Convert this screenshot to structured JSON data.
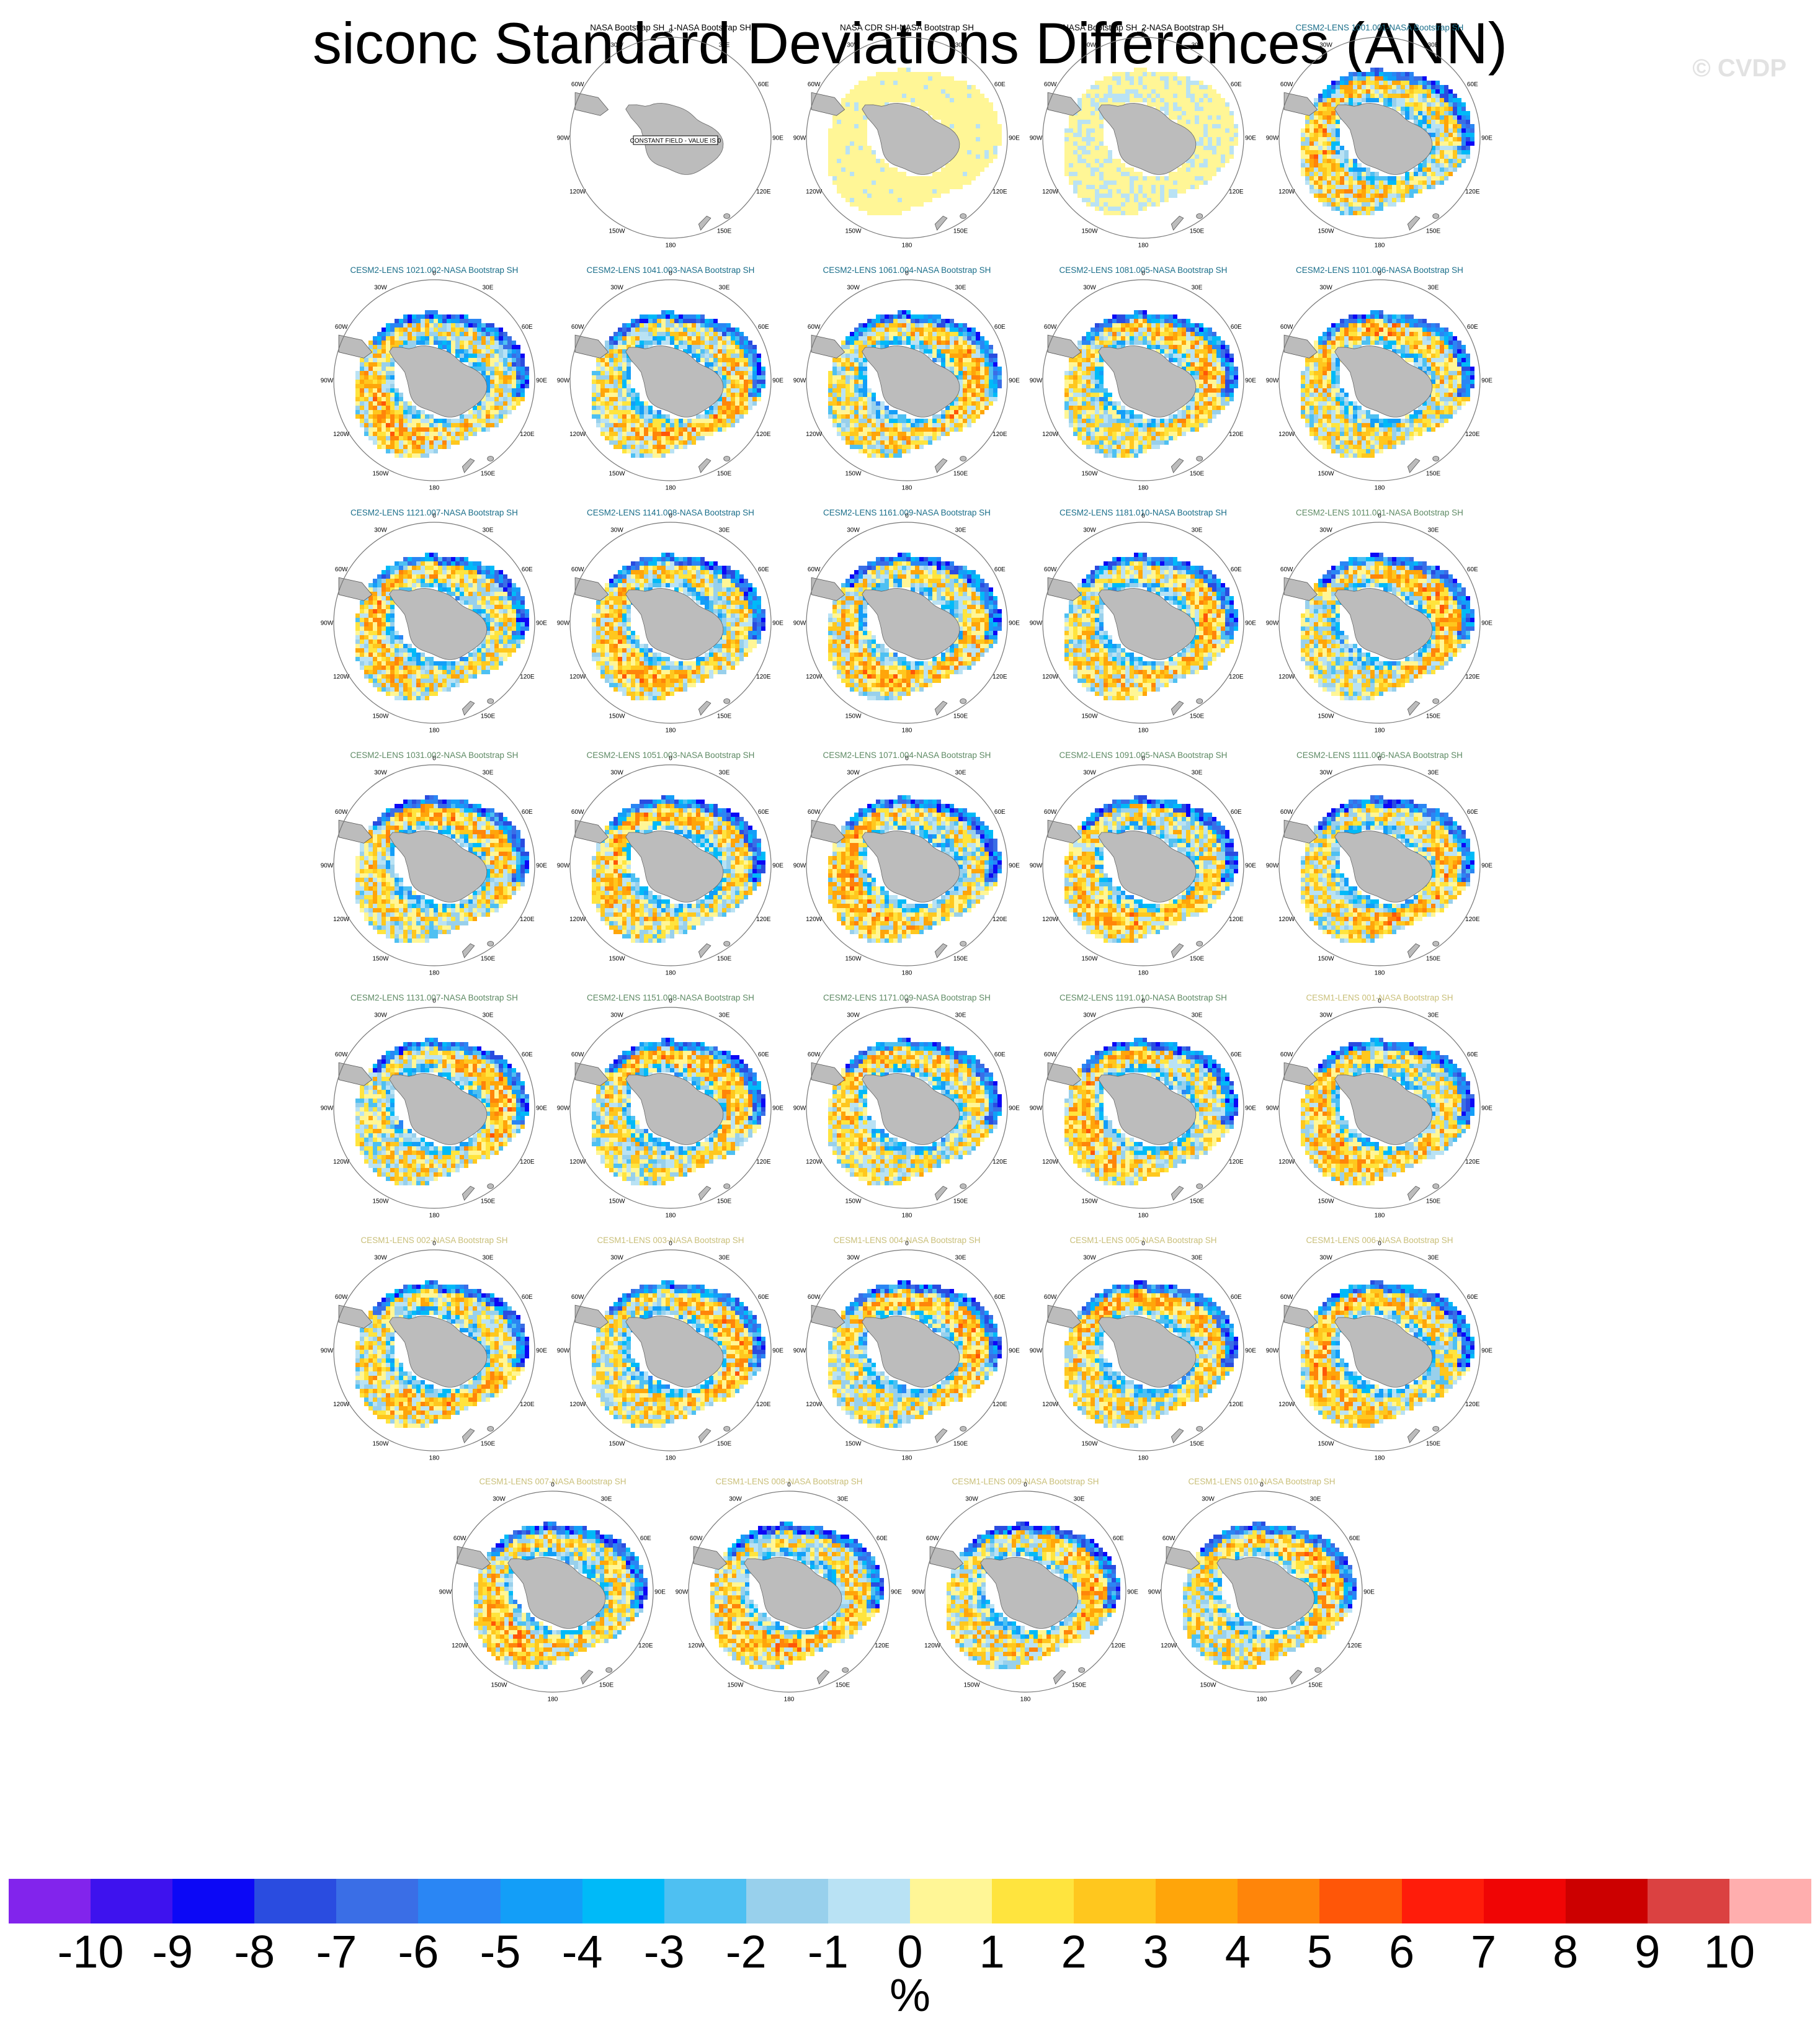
{
  "title": "siconc Standard Deviations Differences (ANN)",
  "watermark": "© CVDP",
  "units": "%",
  "longitude_labels": [
    "0",
    "30E",
    "60E",
    "90E",
    "120E",
    "150E",
    "180",
    "150W",
    "120W",
    "90W",
    "60W",
    "30W"
  ],
  "constant_field_note": "CONSTANT FIELD - VALUE IS 0",
  "colors": {
    "obs_title": "#000000",
    "cesm2_cmip6_title": "#1a6e8a",
    "cesm2_smbb_title": "#5e8a64",
    "cesm1_title": "#c9bf79",
    "land": "#bcbcbc"
  },
  "panels": [
    {
      "title": "NASA Bootstrap SH_1-NASA Bootstrap SH",
      "group": "obs",
      "field": "constant"
    },
    {
      "title": "NASA CDR SH-NASA Bootstrap SH",
      "group": "obs",
      "field": "small_positive"
    },
    {
      "title": "NASA Bootstrap SH_2-NASA Bootstrap SH",
      "group": "obs",
      "field": "small_mixed"
    },
    {
      "title": "CESM2-LENS 1001.001-NASA Bootstrap SH",
      "group": "cesm2_cmip6",
      "field": "model"
    },
    {
      "title": "CESM2-LENS 1021.002-NASA Bootstrap SH",
      "group": "cesm2_cmip6",
      "field": "model"
    },
    {
      "title": "CESM2-LENS 1041.003-NASA Bootstrap SH",
      "group": "cesm2_cmip6",
      "field": "model"
    },
    {
      "title": "CESM2-LENS 1061.004-NASA Bootstrap SH",
      "group": "cesm2_cmip6",
      "field": "model"
    },
    {
      "title": "CESM2-LENS 1081.005-NASA Bootstrap SH",
      "group": "cesm2_cmip6",
      "field": "model"
    },
    {
      "title": "CESM2-LENS 1101.006-NASA Bootstrap SH",
      "group": "cesm2_cmip6",
      "field": "model"
    },
    {
      "title": "CESM2-LENS 1121.007-NASA Bootstrap SH",
      "group": "cesm2_cmip6",
      "field": "model"
    },
    {
      "title": "CESM2-LENS 1141.008-NASA Bootstrap SH",
      "group": "cesm2_cmip6",
      "field": "model"
    },
    {
      "title": "CESM2-LENS 1161.009-NASA Bootstrap SH",
      "group": "cesm2_cmip6",
      "field": "model"
    },
    {
      "title": "CESM2-LENS 1181.010-NASA Bootstrap SH",
      "group": "cesm2_cmip6",
      "field": "model"
    },
    {
      "title": "CESM2-LENS 1011.001-NASA Bootstrap SH",
      "group": "cesm2_smbb",
      "field": "model"
    },
    {
      "title": "CESM2-LENS 1031.002-NASA Bootstrap SH",
      "group": "cesm2_smbb",
      "field": "model"
    },
    {
      "title": "CESM2-LENS 1051.003-NASA Bootstrap SH",
      "group": "cesm2_smbb",
      "field": "model"
    },
    {
      "title": "CESM2-LENS 1071.004-NASA Bootstrap SH",
      "group": "cesm2_smbb",
      "field": "model"
    },
    {
      "title": "CESM2-LENS 1091.005-NASA Bootstrap SH",
      "group": "cesm2_smbb",
      "field": "model"
    },
    {
      "title": "CESM2-LENS 1111.006-NASA Bootstrap SH",
      "group": "cesm2_smbb",
      "field": "model"
    },
    {
      "title": "CESM2-LENS 1131.007-NASA Bootstrap SH",
      "group": "cesm2_smbb",
      "field": "model"
    },
    {
      "title": "CESM2-LENS 1151.008-NASA Bootstrap SH",
      "group": "cesm2_smbb",
      "field": "model"
    },
    {
      "title": "CESM2-LENS 1171.009-NASA Bootstrap SH",
      "group": "cesm2_smbb",
      "field": "model"
    },
    {
      "title": "CESM2-LENS 1191.010-NASA Bootstrap SH",
      "group": "cesm2_smbb",
      "field": "model"
    },
    {
      "title": "CESM1-LENS 001-NASA Bootstrap SH",
      "group": "cesm1",
      "field": "model"
    },
    {
      "title": "CESM1-LENS 002-NASA Bootstrap SH",
      "group": "cesm1",
      "field": "model"
    },
    {
      "title": "CESM1-LENS 003-NASA Bootstrap SH",
      "group": "cesm1",
      "field": "model"
    },
    {
      "title": "CESM1-LENS 004-NASA Bootstrap SH",
      "group": "cesm1",
      "field": "model"
    },
    {
      "title": "CESM1-LENS 005-NASA Bootstrap SH",
      "group": "cesm1",
      "field": "model"
    },
    {
      "title": "CESM1-LENS 006-NASA Bootstrap SH",
      "group": "cesm1",
      "field": "model"
    },
    {
      "title": "CESM1-LENS 007-NASA Bootstrap SH",
      "group": "cesm1",
      "field": "model"
    },
    {
      "title": "CESM1-LENS 008-NASA Bootstrap SH",
      "group": "cesm1",
      "field": "model"
    },
    {
      "title": "CESM1-LENS 009-NASA Bootstrap SH",
      "group": "cesm1",
      "field": "model"
    },
    {
      "title": "CESM1-LENS 010-NASA Bootstrap SH",
      "group": "cesm1",
      "field": "model"
    }
  ],
  "colorbar": {
    "ticks": [
      "-10",
      "-9",
      "-8",
      "-7",
      "-6",
      "-5",
      "-4",
      "-3",
      "-2",
      "-1",
      "0",
      "1",
      "2",
      "3",
      "4",
      "5",
      "6",
      "7",
      "8",
      "9",
      "10"
    ],
    "colors": [
      "#8224ec",
      "#3e12ee",
      "#0c08f6",
      "#2a4ce0",
      "#3a6ee6",
      "#2a86f4",
      "#139ef8",
      "#00baf8",
      "#4ec0f2",
      "#98d0ec",
      "#b9e2f4",
      "#fff696",
      "#ffe43e",
      "#ffc71e",
      "#ffa50a",
      "#ff850a",
      "#ff5608",
      "#ff1c0a",
      "#f00505",
      "#cc0000",
      "#db4141",
      "#ffaeae"
    ]
  }
}
